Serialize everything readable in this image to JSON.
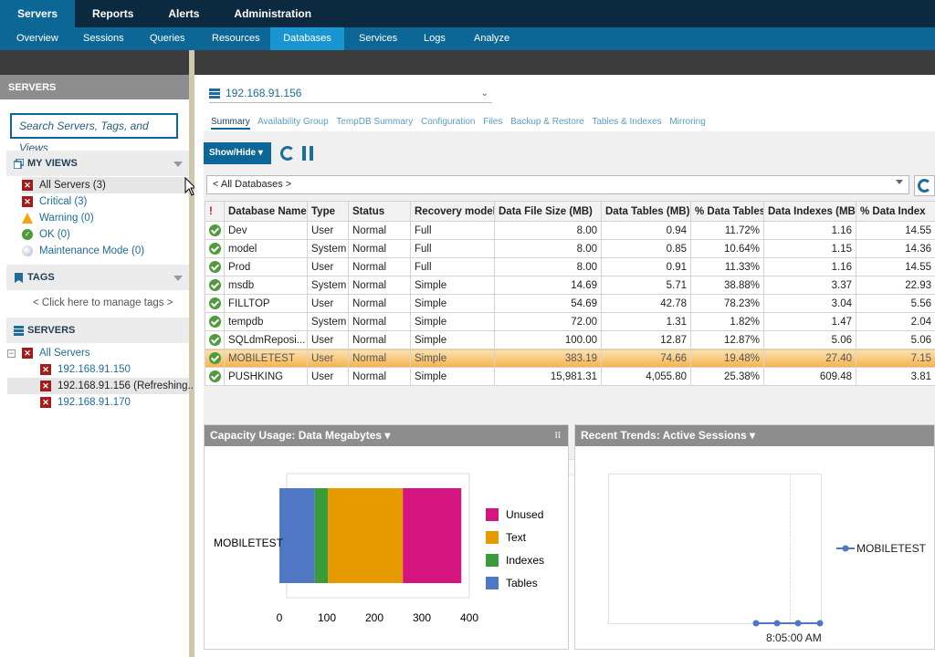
{
  "top_nav": [
    "Servers",
    "Reports",
    "Alerts",
    "Administration"
  ],
  "sub_nav": [
    "Overview",
    "Sessions",
    "Queries",
    "Resources",
    "Databases",
    "Services",
    "Logs",
    "Analyze"
  ],
  "sidebar": {
    "header": "SERVERS",
    "search_placeholder": "Search Servers, Tags, and Views",
    "my_views_title": "MY VIEWS",
    "views": [
      "All Servers (3)",
      "Critical (3)",
      "Warning (0)",
      "OK (0)",
      "Maintenance Mode (0)"
    ],
    "tags_title": "TAGS",
    "tags_hint": "< Click here to manage tags >",
    "servers_title": "SERVERS",
    "tree_root": "All Servers",
    "tree_items": [
      "192.168.91.150",
      "192.168.91.156 (Refreshing...",
      "192.168.91.170"
    ]
  },
  "main": {
    "server": "192.168.91.156",
    "tabs": [
      "Summary",
      "Availability Group",
      "TempDB Summary",
      "Configuration",
      "Files",
      "Backup & Restore",
      "Tables & Indexes",
      "Mirroring"
    ],
    "show_hide": "Show/Hide",
    "db_filter": "< All Databases >",
    "columns": [
      "Database Name",
      "Type",
      "Status",
      "Recovery model",
      "Data File Size (MB)",
      "Data Tables (MB)",
      "% Data Tables",
      "Data Indexes (MB)",
      "% Data Index"
    ],
    "rows": [
      [
        "Dev",
        "User",
        "Normal",
        "Full",
        "8.00",
        "0.94",
        "11.72%",
        "1.16",
        "14.55"
      ],
      [
        "model",
        "System",
        "Normal",
        "Full",
        "8.00",
        "0.85",
        "10.64%",
        "1.15",
        "14.36"
      ],
      [
        "Prod",
        "User",
        "Normal",
        "Full",
        "8.00",
        "0.91",
        "11.33%",
        "1.16",
        "14.55"
      ],
      [
        "msdb",
        "System",
        "Normal",
        "Simple",
        "14.69",
        "5.71",
        "38.88%",
        "3.37",
        "22.93"
      ],
      [
        "FILLTOP",
        "User",
        "Normal",
        "Simple",
        "54.69",
        "42.78",
        "78.23%",
        "3.04",
        "5.56"
      ],
      [
        "tempdb",
        "System",
        "Normal",
        "Simple",
        "72.00",
        "1.31",
        "1.82%",
        "1.47",
        "2.04"
      ],
      [
        "SQLdmReposi...",
        "User",
        "Normal",
        "Simple",
        "100.00",
        "12.87",
        "12.87%",
        "5.06",
        "5.06"
      ],
      [
        "MOBILETEST",
        "User",
        "Normal",
        "Simple",
        "383.19",
        "74.66",
        "19.48%",
        "27.40",
        "7.15"
      ],
      [
        "PUSHKING",
        "User",
        "Normal",
        "Simple",
        "15,981.31",
        "4,055.80",
        "25.38%",
        "609.48",
        "3.81"
      ]
    ],
    "highlight_row": 7
  },
  "capacity_panel": {
    "title": "Capacity Usage: Data Megabytes",
    "chart_data": {
      "type": "bar",
      "orientation": "horizontal-stacked",
      "categories": [
        "MOBILETEST"
      ],
      "series": [
        {
          "name": "Tables",
          "values": [
            74.66
          ],
          "color": "#4f77c4"
        },
        {
          "name": "Indexes",
          "values": [
            27.4
          ],
          "color": "#3a9b3a"
        },
        {
          "name": "Text",
          "values": [
            158
          ],
          "color": "#e59a00"
        },
        {
          "name": "Unused",
          "values": [
            123
          ],
          "color": "#d4157f"
        }
      ],
      "xlim": [
        0,
        400
      ],
      "xticks": [
        "0",
        "100",
        "200",
        "300",
        "400"
      ],
      "legend": [
        "Unused",
        "Text",
        "Indexes",
        "Tables"
      ]
    }
  },
  "trends_panel": {
    "title": "Recent Trends: Active Sessions",
    "legend": "MOBILETEST",
    "x_label": "8:05:00 AM"
  }
}
